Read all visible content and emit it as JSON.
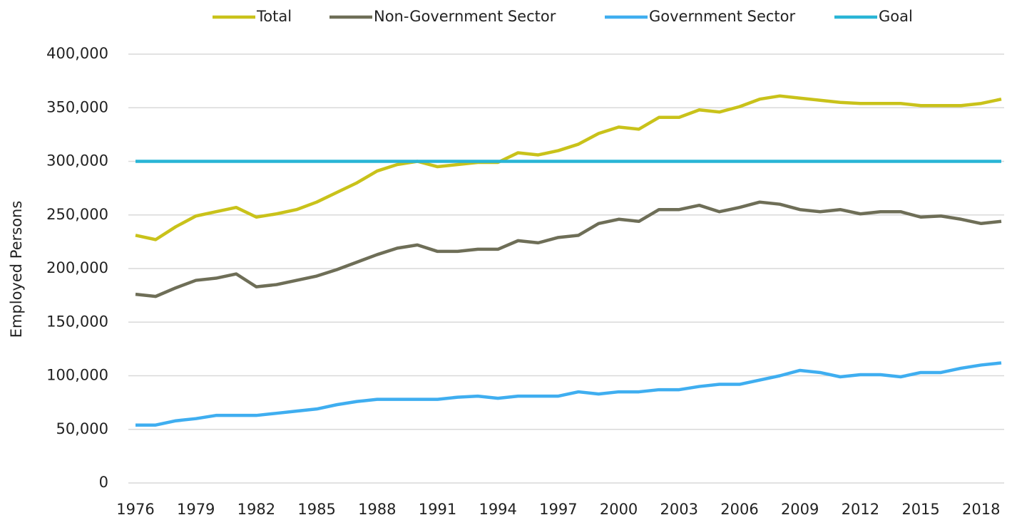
{
  "chart_data": {
    "type": "line",
    "y_label": "Employed Persons",
    "x": [
      1976,
      1977,
      1978,
      1979,
      1980,
      1981,
      1982,
      1983,
      1984,
      1985,
      1986,
      1987,
      1988,
      1989,
      1990,
      1991,
      1992,
      1993,
      1994,
      1995,
      1996,
      1997,
      1998,
      1999,
      2000,
      2001,
      2002,
      2003,
      2004,
      2005,
      2006,
      2007,
      2008,
      2009,
      2010,
      2011,
      2012,
      2013,
      2014,
      2015,
      2016,
      2017,
      2018,
      2019
    ],
    "xlim": [
      1976,
      2019
    ],
    "xticks": [
      1976,
      1979,
      1982,
      1985,
      1988,
      1991,
      1994,
      1997,
      2000,
      2003,
      2006,
      2009,
      2012,
      2015,
      2018
    ],
    "ylim": [
      0,
      400000
    ],
    "yticks": [
      0,
      {
        "value": 50000,
        "label": "50,000"
      },
      {
        "value": 100000,
        "label": "100,000"
      },
      {
        "value": 150000,
        "label": "150,000"
      },
      {
        "value": 200000,
        "label": "200,000"
      },
      {
        "value": 250000,
        "label": "250,000"
      },
      {
        "value": 300000,
        "label": "300,000"
      },
      {
        "value": 350000,
        "label": "350,000"
      },
      {
        "value": 400000,
        "label": "400,000"
      }
    ],
    "grid": true,
    "legend": "top",
    "series": [
      {
        "name": "Total",
        "color": "#c9c21a",
        "values": [
          231000,
          227000,
          239000,
          249000,
          253000,
          257000,
          248000,
          251000,
          255000,
          262000,
          271000,
          280000,
          291000,
          297000,
          300000,
          295000,
          297000,
          299000,
          299000,
          308000,
          306000,
          310000,
          316000,
          326000,
          332000,
          330000,
          341000,
          341000,
          348000,
          346000,
          351000,
          358000,
          361000,
          359000,
          357000,
          355000,
          354000,
          354000,
          354000,
          352000,
          352000,
          352000,
          354000,
          358000
        ]
      },
      {
        "name": "Non-Government Sector",
        "color": "#6e6e57",
        "values": [
          176000,
          174000,
          182000,
          189000,
          191000,
          195000,
          183000,
          185000,
          189000,
          193000,
          199000,
          206000,
          213000,
          219000,
          222000,
          216000,
          216000,
          218000,
          218000,
          226000,
          224000,
          229000,
          231000,
          242000,
          246000,
          244000,
          255000,
          255000,
          259000,
          253000,
          257000,
          262000,
          260000,
          255000,
          253000,
          255000,
          251000,
          253000,
          253000,
          248000,
          249000,
          246000,
          242000,
          244000
        ]
      },
      {
        "name": "Government Sector",
        "color": "#3faef0",
        "values": [
          54000,
          54000,
          58000,
          60000,
          63000,
          63000,
          63000,
          65000,
          67000,
          69000,
          73000,
          76000,
          78000,
          78000,
          78000,
          78000,
          80000,
          81000,
          79000,
          81000,
          81000,
          81000,
          85000,
          83000,
          85000,
          85000,
          87000,
          87000,
          90000,
          92000,
          92000,
          96000,
          100000,
          105000,
          103000,
          99000,
          101000,
          101000,
          99000,
          103000,
          103000,
          107000,
          110000,
          112000
        ]
      },
      {
        "name": "Goal",
        "color": "#29b5d6",
        "values": [
          300000,
          300000,
          300000,
          300000,
          300000,
          300000,
          300000,
          300000,
          300000,
          300000,
          300000,
          300000,
          300000,
          300000,
          300000,
          300000,
          300000,
          300000,
          300000,
          300000,
          300000,
          300000,
          300000,
          300000,
          300000,
          300000,
          300000,
          300000,
          300000,
          300000,
          300000,
          300000,
          300000,
          300000,
          300000,
          300000,
          300000,
          300000,
          300000,
          300000,
          300000,
          300000,
          300000,
          300000
        ]
      }
    ]
  }
}
